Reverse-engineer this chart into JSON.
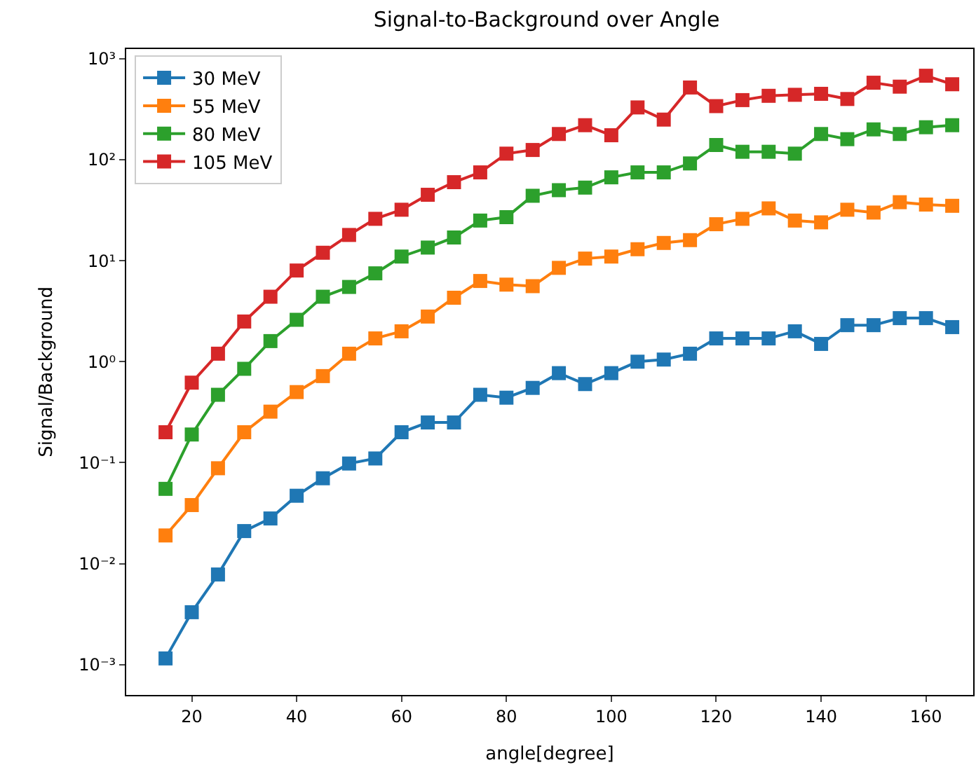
{
  "chart_data": {
    "type": "line",
    "title": "Signal-to-Background over Angle",
    "xlabel": "angle[degree]",
    "ylabel": "Signal/Background",
    "x": [
      15,
      20,
      25,
      30,
      35,
      40,
      45,
      50,
      55,
      60,
      65,
      70,
      75,
      80,
      85,
      90,
      95,
      100,
      105,
      110,
      115,
      120,
      125,
      130,
      135,
      140,
      145,
      150,
      155,
      160,
      165
    ],
    "series": [
      {
        "name": "30 MeV",
        "color": "#1f77b4",
        "values": [
          0.00115,
          0.0033,
          0.0078,
          0.021,
          0.028,
          0.047,
          0.07,
          0.098,
          0.11,
          0.2,
          0.25,
          0.25,
          0.47,
          0.44,
          0.55,
          0.77,
          0.6,
          0.77,
          1.0,
          1.05,
          1.2,
          1.7,
          1.7,
          1.7,
          2.0,
          1.5,
          2.3,
          2.3,
          2.7,
          2.7,
          2.2
        ]
      },
      {
        "name": "55 MeV",
        "color": "#ff7f0e",
        "values": [
          0.019,
          0.038,
          0.088,
          0.2,
          0.32,
          0.5,
          0.72,
          1.2,
          1.7,
          2.0,
          2.8,
          4.3,
          6.3,
          5.8,
          5.6,
          8.5,
          10.5,
          11,
          13,
          15,
          16,
          23,
          26,
          33,
          25,
          24,
          32,
          30,
          38,
          36,
          35
        ]
      },
      {
        "name": "80 MeV",
        "color": "#2ca02c",
        "values": [
          0.055,
          0.19,
          0.47,
          0.85,
          1.6,
          2.6,
          4.4,
          5.5,
          7.5,
          11,
          13.5,
          17,
          25,
          27,
          44,
          50,
          53,
          67,
          75,
          75,
          92,
          140,
          120,
          120,
          115,
          180,
          160,
          200,
          180,
          210,
          220
        ]
      },
      {
        "name": "105 MeV",
        "color": "#d62728",
        "values": [
          0.2,
          0.62,
          1.2,
          2.5,
          4.4,
          8,
          12,
          18,
          26,
          32,
          45,
          60,
          75,
          115,
          125,
          180,
          220,
          175,
          330,
          250,
          520,
          340,
          390,
          430,
          440,
          450,
          400,
          580,
          530,
          680,
          560
        ]
      }
    ],
    "log": "y",
    "legend": "top left",
    "marker": "square",
    "line_style": "solid",
    "xlim": [
      7.5,
      169
    ],
    "xticks": [
      20,
      40,
      60,
      80,
      100,
      120,
      140,
      160
    ],
    "ylim": [
      0.0005,
      1250
    ],
    "yticks": [
      {
        "value": 0.001,
        "label": "10⁻³"
      },
      {
        "value": 0.01,
        "label": "10⁻²"
      },
      {
        "value": 0.1,
        "label": "10⁻¹"
      },
      {
        "value": 1,
        "label": "10⁰"
      },
      {
        "value": 10,
        "label": "10¹"
      },
      {
        "value": 100,
        "label": "10²"
      },
      {
        "value": 1000,
        "label": "10³"
      }
    ]
  }
}
